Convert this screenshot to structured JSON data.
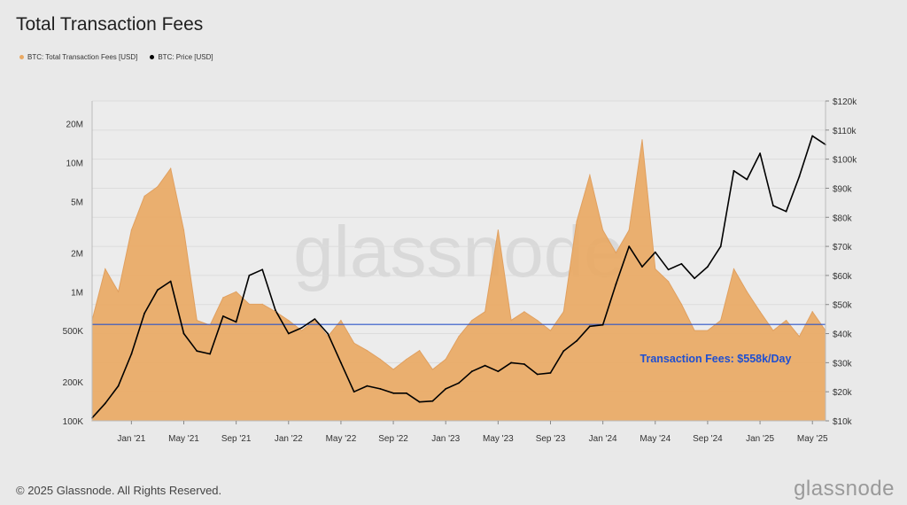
{
  "page": {
    "title": "Total Transaction Fees",
    "footer": "© 2025 Glassnode. All Rights Reserved.",
    "brand": "glassnode",
    "watermark": "glassnode"
  },
  "colors": {
    "fees": "#e9a964",
    "fees_line": "#e0a060",
    "price": "#000000",
    "ref_line": "#2b54c9",
    "annotation": "#1f4fd1",
    "plot_bg": "#ececec"
  },
  "chart_data": {
    "type": "area",
    "grid": true,
    "legend_position": "top-left",
    "x_tick_labels": [
      "Jan '21",
      "May '21",
      "Sep '21",
      "Jan '22",
      "May '22",
      "Sep '22",
      "Jan '23",
      "May '23",
      "Sep '23",
      "Jan '24",
      "May '24",
      "Sep '24",
      "Jan '25",
      "May '25"
    ],
    "x_range": [
      "2020-10",
      "2025-06"
    ],
    "y_left": {
      "scale": "log",
      "range": [
        100000,
        30000000
      ],
      "tick_values": [
        100000,
        200000,
        500000,
        1000000,
        2000000,
        5000000,
        10000000,
        20000000
      ],
      "tick_labels": [
        "100K",
        "200K",
        "500K",
        "1M",
        "2M",
        "5M",
        "10M",
        "20M"
      ]
    },
    "y_right": {
      "scale": "linear",
      "range": [
        10000,
        120000
      ],
      "tick_values": [
        10000,
        20000,
        30000,
        40000,
        50000,
        60000,
        70000,
        80000,
        90000,
        100000,
        110000,
        120000
      ],
      "tick_labels": [
        "$10k",
        "$20k",
        "$30k",
        "$40k",
        "$50k",
        "$60k",
        "$70k",
        "$80k",
        "$90k",
        "$100k",
        "$110k",
        "$120k"
      ]
    },
    "series": [
      {
        "name": "BTC: Total Transaction Fees [USD]",
        "axis": "left",
        "points": [
          [
            "2020-10",
            600000
          ],
          [
            "2020-11",
            1500000
          ],
          [
            "2020-12",
            1000000
          ],
          [
            "2021-01",
            3000000
          ],
          [
            "2021-02",
            5500000
          ],
          [
            "2021-03",
            6500000
          ],
          [
            "2021-04",
            9000000
          ],
          [
            "2021-05",
            3000000
          ],
          [
            "2021-06",
            600000
          ],
          [
            "2021-07",
            550000
          ],
          [
            "2021-08",
            900000
          ],
          [
            "2021-09",
            1000000
          ],
          [
            "2021-10",
            800000
          ],
          [
            "2021-11",
            800000
          ],
          [
            "2021-12",
            700000
          ],
          [
            "2022-01",
            600000
          ],
          [
            "2022-02",
            500000
          ],
          [
            "2022-03",
            600000
          ],
          [
            "2022-04",
            450000
          ],
          [
            "2022-05",
            600000
          ],
          [
            "2022-06",
            400000
          ],
          [
            "2022-07",
            350000
          ],
          [
            "2022-08",
            300000
          ],
          [
            "2022-09",
            250000
          ],
          [
            "2022-10",
            300000
          ],
          [
            "2022-11",
            350000
          ],
          [
            "2022-12",
            250000
          ],
          [
            "2023-01",
            300000
          ],
          [
            "2023-02",
            450000
          ],
          [
            "2023-03",
            600000
          ],
          [
            "2023-04",
            700000
          ],
          [
            "2023-05",
            3000000
          ],
          [
            "2023-06",
            600000
          ],
          [
            "2023-07",
            700000
          ],
          [
            "2023-08",
            600000
          ],
          [
            "2023-09",
            500000
          ],
          [
            "2023-10",
            700000
          ],
          [
            "2023-11",
            3500000
          ],
          [
            "2023-12",
            8000000
          ],
          [
            "2024-01",
            3000000
          ],
          [
            "2024-02",
            2000000
          ],
          [
            "2024-03",
            3000000
          ],
          [
            "2024-04",
            15000000
          ],
          [
            "2024-05",
            1500000
          ],
          [
            "2024-06",
            1200000
          ],
          [
            "2024-07",
            800000
          ],
          [
            "2024-08",
            500000
          ],
          [
            "2024-09",
            500000
          ],
          [
            "2024-10",
            600000
          ],
          [
            "2024-11",
            1500000
          ],
          [
            "2024-12",
            1000000
          ],
          [
            "2025-01",
            700000
          ],
          [
            "2025-02",
            500000
          ],
          [
            "2025-03",
            600000
          ],
          [
            "2025-04",
            450000
          ],
          [
            "2025-05",
            700000
          ],
          [
            "2025-06",
            500000
          ]
        ]
      },
      {
        "name": "BTC: Price [USD]",
        "axis": "right",
        "points": [
          [
            "2020-10",
            11000
          ],
          [
            "2020-11",
            16000
          ],
          [
            "2020-12",
            22000
          ],
          [
            "2021-01",
            33000
          ],
          [
            "2021-02",
            47000
          ],
          [
            "2021-03",
            55000
          ],
          [
            "2021-04",
            58000
          ],
          [
            "2021-05",
            40000
          ],
          [
            "2021-06",
            34000
          ],
          [
            "2021-07",
            33000
          ],
          [
            "2021-08",
            46000
          ],
          [
            "2021-09",
            44000
          ],
          [
            "2021-10",
            60000
          ],
          [
            "2021-11",
            62000
          ],
          [
            "2021-12",
            48000
          ],
          [
            "2022-01",
            40000
          ],
          [
            "2022-02",
            42000
          ],
          [
            "2022-03",
            45000
          ],
          [
            "2022-04",
            40000
          ],
          [
            "2022-05",
            30000
          ],
          [
            "2022-06",
            20000
          ],
          [
            "2022-07",
            22000
          ],
          [
            "2022-08",
            21000
          ],
          [
            "2022-09",
            19500
          ],
          [
            "2022-10",
            19500
          ],
          [
            "2022-11",
            16500
          ],
          [
            "2022-12",
            16800
          ],
          [
            "2023-01",
            21000
          ],
          [
            "2023-02",
            23000
          ],
          [
            "2023-03",
            27000
          ],
          [
            "2023-04",
            29000
          ],
          [
            "2023-05",
            27000
          ],
          [
            "2023-06",
            30000
          ],
          [
            "2023-07",
            29500
          ],
          [
            "2023-08",
            26000
          ],
          [
            "2023-09",
            26500
          ],
          [
            "2023-10",
            34000
          ],
          [
            "2023-11",
            37500
          ],
          [
            "2023-12",
            42500
          ],
          [
            "2024-01",
            43000
          ],
          [
            "2024-02",
            57000
          ],
          [
            "2024-03",
            70000
          ],
          [
            "2024-04",
            63000
          ],
          [
            "2024-05",
            68000
          ],
          [
            "2024-06",
            62000
          ],
          [
            "2024-07",
            64000
          ],
          [
            "2024-08",
            59000
          ],
          [
            "2024-09",
            63000
          ],
          [
            "2024-10",
            70000
          ],
          [
            "2024-11",
            96000
          ],
          [
            "2024-12",
            93000
          ],
          [
            "2025-01",
            102000
          ],
          [
            "2025-02",
            84000
          ],
          [
            "2025-03",
            82000
          ],
          [
            "2025-04",
            94000
          ],
          [
            "2025-05",
            108000
          ],
          [
            "2025-06",
            105000
          ]
        ]
      }
    ],
    "reference_line": {
      "value": 558000,
      "axis": "left"
    },
    "annotations": [
      {
        "text": "Transaction Fees: $558k/Day"
      }
    ]
  }
}
